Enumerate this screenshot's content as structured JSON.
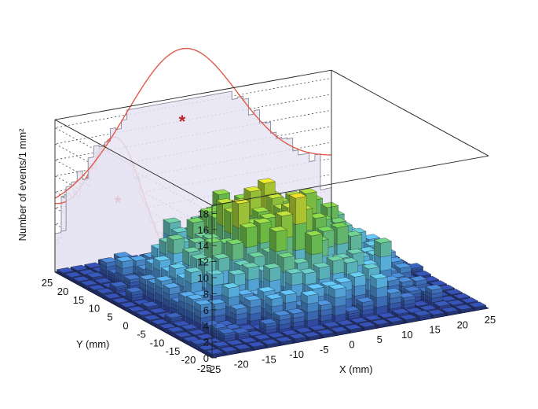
{
  "chart_data": {
    "type": "bar3d",
    "zlabel": "Number of events/1 mm²",
    "xlabel": "X (mm)",
    "ylabel": "Y (mm)",
    "zlim": [
      0,
      19
    ],
    "xlim": [
      -25,
      25
    ],
    "ylim": [
      -25,
      25
    ],
    "z_ticks": [
      0,
      2,
      4,
      6,
      8,
      10,
      12,
      14,
      16,
      18
    ],
    "x_ticks": [
      -25,
      -20,
      -15,
      -10,
      -5,
      0,
      5,
      10,
      15,
      20,
      25
    ],
    "y_ticks": [
      25,
      20,
      15,
      10,
      5,
      0,
      -5,
      -10,
      -15,
      -20,
      -25
    ],
    "grid": true,
    "bin_size_mm": 1,
    "distribution": "2D histogram of event positions, peaked near center with maximum counts ~16-17",
    "projection_x": {
      "description": "X-projection histogram shown on back wall with Gaussian fit (red curve)",
      "peak_marker": "*"
    },
    "projection_y": {
      "description": "Y-projection histogram shown on side wall with Gaussian fit (red curve)",
      "peak_marker": "*"
    },
    "colors": {
      "low": "#2b3f9e",
      "mid_low": "#5bb7e6",
      "mid": "#6cc24a",
      "mid_high": "#d6d22a",
      "high": "#d6301c",
      "projection_fill": "#e6e4f2",
      "projection_edge": "#8a8899",
      "fit_curve": "#e05a4a",
      "marker": "#c0202a"
    }
  }
}
